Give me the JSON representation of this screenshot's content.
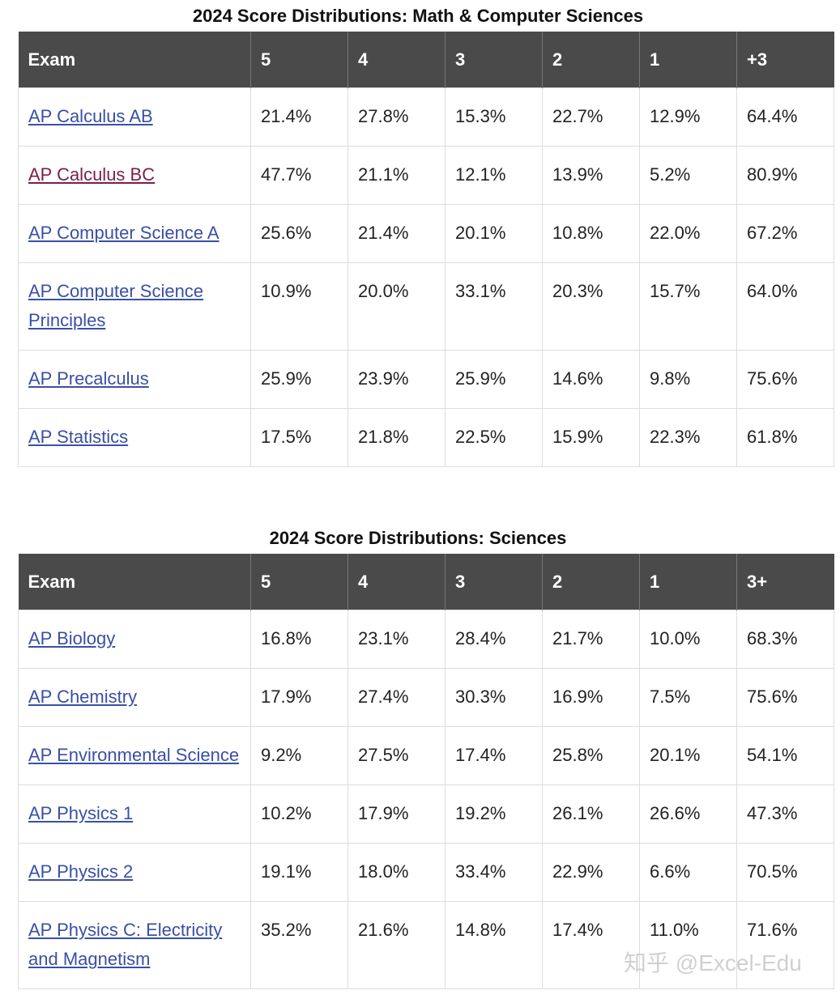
{
  "tables": [
    {
      "title": "2024 Score Distributions: Math & Computer Sciences",
      "headers": [
        "Exam",
        "5",
        "4",
        "3",
        "2",
        "1",
        "+3"
      ],
      "rows": [
        [
          "AP Calculus AB",
          "21.4%",
          "27.8%",
          "15.3%",
          "22.7%",
          "12.9%",
          "64.4%"
        ],
        [
          "AP Calculus BC",
          "47.7%",
          "21.1%",
          "12.1%",
          "13.9%",
          "5.2%",
          "80.9%"
        ],
        [
          "AP Computer Science A",
          "25.6%",
          "21.4%",
          "20.1%",
          "10.8%",
          "22.0%",
          "67.2%"
        ],
        [
          "AP Computer Science Principles",
          "10.9%",
          "20.0%",
          "33.1%",
          "20.3%",
          "15.7%",
          "64.0%"
        ],
        [
          "AP Precalculus",
          "25.9%",
          "23.9%",
          "25.9%",
          "14.6%",
          "9.8%",
          "75.6%"
        ],
        [
          "AP Statistics",
          "17.5%",
          "21.8%",
          "22.5%",
          "15.9%",
          "22.3%",
          "61.8%"
        ]
      ]
    },
    {
      "title": "2024 Score Distributions: Sciences",
      "headers": [
        "Exam",
        "5",
        "4",
        "3",
        "2",
        "1",
        "3+"
      ],
      "rows": [
        [
          "AP Biology",
          "16.8%",
          "23.1%",
          "28.4%",
          "21.7%",
          "10.0%",
          "68.3%"
        ],
        [
          "AP Chemistry",
          "17.9%",
          "27.4%",
          "30.3%",
          "16.9%",
          "7.5%",
          "75.6%"
        ],
        [
          "AP Environmental Science",
          "9.2%",
          "27.5%",
          "17.4%",
          "25.8%",
          "20.1%",
          "54.1%"
        ],
        [
          "AP Physics 1",
          "10.2%",
          "17.9%",
          "19.2%",
          "26.1%",
          "26.6%",
          "47.3%"
        ],
        [
          "AP Physics 2",
          "19.1%",
          "18.0%",
          "33.4%",
          "22.9%",
          "6.6%",
          "70.5%"
        ],
        [
          "AP Physics C: Electricity and Magnetism",
          "35.2%",
          "21.6%",
          "14.8%",
          "17.4%",
          "11.0%",
          "71.6%"
        ]
      ]
    }
  ],
  "watermark": "知乎 @Excel-Edu"
}
